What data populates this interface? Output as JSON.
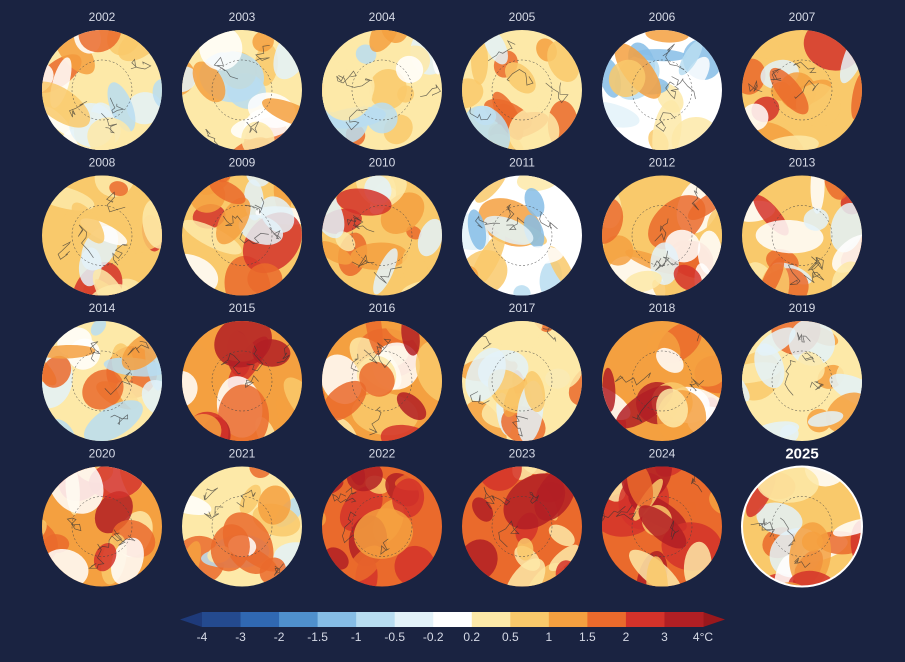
{
  "maps": [
    {
      "year": "2002"
    },
    {
      "year": "2003"
    },
    {
      "year": "2004"
    },
    {
      "year": "2005"
    },
    {
      "year": "2006"
    },
    {
      "year": "2007"
    },
    {
      "year": "2008"
    },
    {
      "year": "2009"
    },
    {
      "year": "2010"
    },
    {
      "year": "2011"
    },
    {
      "year": "2012"
    },
    {
      "year": "2013"
    },
    {
      "year": "2014"
    },
    {
      "year": "2015"
    },
    {
      "year": "2016"
    },
    {
      "year": "2017"
    },
    {
      "year": "2018"
    },
    {
      "year": "2019"
    },
    {
      "year": "2020"
    },
    {
      "year": "2021"
    },
    {
      "year": "2022"
    },
    {
      "year": "2023"
    },
    {
      "year": "2024"
    },
    {
      "year": "2025"
    }
  ],
  "colorbar": {
    "labels": [
      "-4",
      "-3",
      "-2",
      "-1.5",
      "-1",
      "-0.5",
      "-0.2",
      "0.2",
      "0.5",
      "1",
      "1.5",
      "2",
      "3",
      "4°C"
    ],
    "colors": [
      "#244a8f",
      "#3068b2",
      "#4f90cd",
      "#86bde6",
      "#b8ddf1",
      "#e3f2f9",
      "#ffffff",
      "#fde9a8",
      "#f9c96b",
      "#f4a040",
      "#ea6a2c",
      "#d4322a",
      "#b11f24"
    ],
    "under": "#1e3a7a",
    "over": "#9a181d"
  }
}
